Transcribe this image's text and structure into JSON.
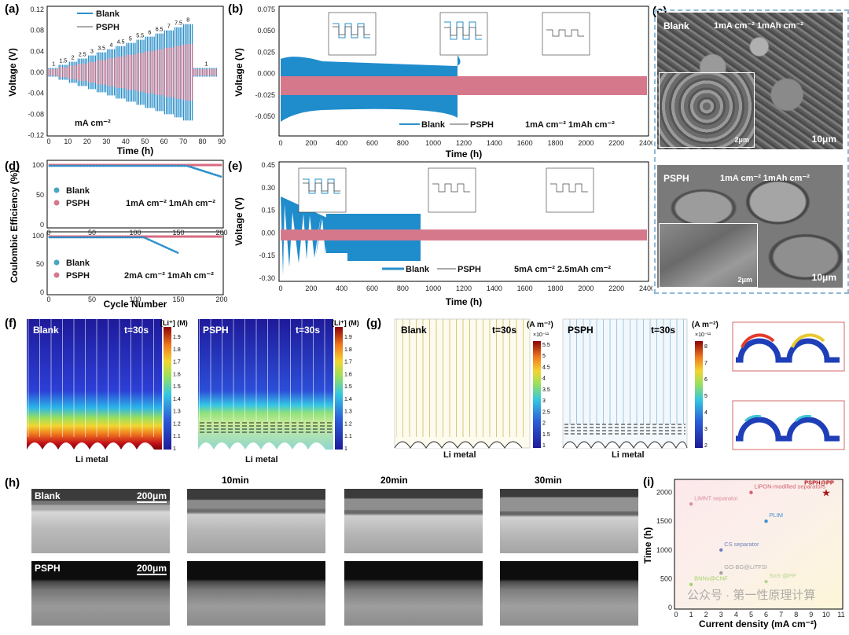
{
  "panel_labels": [
    "(a)",
    "(b)",
    "(c)",
    "(d)",
    "(e)",
    "(f)",
    "(g)",
    "(h)",
    "(i)"
  ],
  "legend": {
    "blank": "Blank",
    "psph": "PSPH"
  },
  "colors": {
    "blank": "#2a8fc9",
    "psph": "#d96b82",
    "blue_fill": "#1f8ccc",
    "pink_fill": "#d6788c",
    "dash": "#8fb9d6"
  },
  "axes": {
    "voltage_v": "Voltage (V)",
    "time_h": "Time (h)",
    "ce": "Coulombic Efficiency (%)",
    "cycle": "Cycle Number",
    "current_density": "Current density (mA cm⁻²)",
    "time_label": "Time (h)"
  },
  "panel_a": {
    "unit_label": "mA cm⁻²",
    "x_ticks": [
      "0",
      "10",
      "20",
      "30",
      "40",
      "50",
      "60",
      "70",
      "80",
      "90"
    ],
    "y_ticks": [
      "0.12",
      "0.08",
      "0.04",
      "0.00",
      "-0.04",
      "-0.08",
      "-0.12"
    ],
    "rate_labels": [
      "1",
      "1.5",
      "2",
      "2.5",
      "3",
      "3.5",
      "4",
      "4.5",
      "5",
      "5.5",
      "6",
      "6.5",
      "7",
      "7.5",
      "8",
      "1"
    ]
  },
  "panel_b": {
    "condition": "1mA cm⁻²  1mAh cm⁻²",
    "x_ticks": [
      "0",
      "200",
      "400",
      "600",
      "800",
      "1000",
      "1200",
      "1400",
      "1600",
      "1800",
      "2000",
      "2200",
      "2400"
    ],
    "y_ticks": [
      "0.075",
      "0.050",
      "0.025",
      "0.000",
      "-0.025",
      "-0.050"
    ]
  },
  "panel_c": {
    "top_label": "Blank",
    "top_condition": "1mA cm⁻² 1mAh cm⁻²",
    "top_scale": "10μm",
    "top_inset_scale": "2μm",
    "bottom_label": "PSPH",
    "bottom_condition": "1mA cm⁻² 1mAh cm⁻²",
    "bottom_scale": "10μm",
    "bottom_inset_scale": "2μm"
  },
  "panel_d": {
    "top_condition": "1mA cm⁻²  1mAh cm⁻²",
    "bottom_condition": "2mA cm⁻²  1mAh cm⁻²",
    "x_ticks": [
      "0",
      "50",
      "100",
      "150",
      "200"
    ],
    "y_ticks": [
      "100",
      "50",
      "0"
    ]
  },
  "panel_e": {
    "condition": "5mA cm⁻²  2.5mAh cm⁻²",
    "x_ticks": [
      "0",
      "200",
      "400",
      "600",
      "800",
      "1000",
      "1200",
      "1400",
      "1600",
      "1800",
      "2000",
      "2200",
      "2400"
    ],
    "y_ticks": [
      "0.45",
      "0.30",
      "0.15",
      "0.00",
      "-0.15",
      "-0.30"
    ]
  },
  "panel_f": {
    "left_label": "Blank",
    "right_label": "PSPH",
    "time": "t=30s",
    "colorbar_title": "[Li⁺] (M)",
    "colorbar_ticks": [
      "1.9",
      "1.8",
      "1.7",
      "1.6",
      "1.5",
      "1.4",
      "1.3",
      "1.2",
      "1.1",
      "1"
    ],
    "bottom_label": "Li metal"
  },
  "panel_g": {
    "left_label": "Blank",
    "right_label": "PSPH",
    "time": "t=30s",
    "colorbar_title": "(A m⁻²)",
    "left_exp": "×10⁻¹¹",
    "left_ticks": [
      "5.5",
      "5",
      "4.5",
      "4",
      "3.5",
      "3",
      "2.5",
      "2",
      "1.5",
      "1"
    ],
    "right_exp": "×10⁻¹¹",
    "right_ticks": [
      "8",
      "7",
      "6",
      "5",
      "4",
      "3",
      "2"
    ],
    "bottom_label": "Li metal"
  },
  "panel_h": {
    "times": [
      "10min",
      "20min",
      "30min"
    ],
    "row_labels": [
      "Blank",
      "PSPH"
    ],
    "scale": "200μm"
  },
  "panel_i": {
    "x_ticks": [
      "0",
      "1",
      "2",
      "3",
      "4",
      "5",
      "6",
      "7",
      "8",
      "9",
      "10",
      "11"
    ],
    "y_ticks": [
      "2000",
      "1500",
      "1000",
      "500",
      "0"
    ],
    "watermark": "公众号 · 第一性原理计算"
  },
  "chart_data": [
    {
      "type": "scatter",
      "title": "",
      "xlabel": "Current density (mA cm⁻²)",
      "ylabel": "Time (h)",
      "xlim": [
        0,
        11
      ],
      "ylim": [
        0,
        2200
      ],
      "points": [
        {
          "label": "PSPH@PP",
          "x": 10,
          "y": 2000,
          "color": "#b0151b"
        },
        {
          "label": "LiPON-modified separators",
          "x": 5,
          "y": 2000,
          "color": "#d2606f"
        },
        {
          "label": "LiMNT separator",
          "x": 1,
          "y": 1800,
          "color": "#d88fa0"
        },
        {
          "label": "PLIM",
          "x": 6,
          "y": 1500,
          "color": "#3d8fd1"
        },
        {
          "label": "CS separator",
          "x": 3,
          "y": 1000,
          "color": "#6f7fbf"
        },
        {
          "label": "GO-BG@LiTFSI",
          "x": 3,
          "y": 600,
          "color": "#a2a2a2"
        },
        {
          "label": "SnS-@PP",
          "x": 6,
          "y": 450,
          "color": "#b9d48f"
        },
        {
          "label": "BNNs@CNF",
          "x": 1,
          "y": 400,
          "color": "#a7d36a"
        }
      ]
    }
  ]
}
